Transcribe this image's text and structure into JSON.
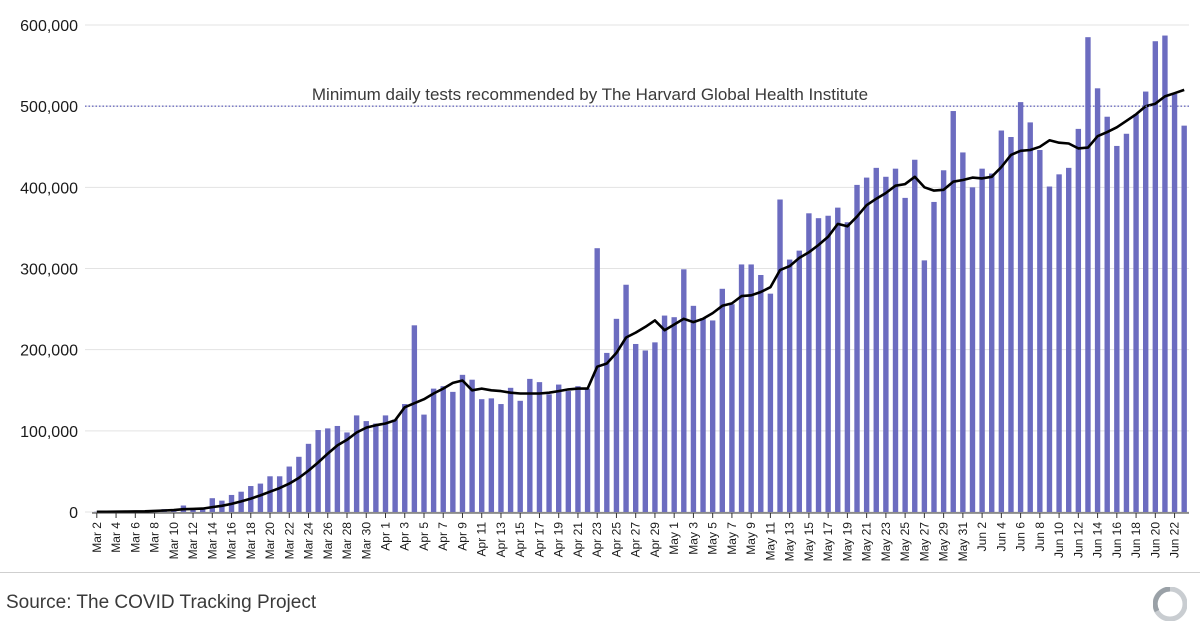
{
  "chart_data": {
    "type": "bar",
    "ylim": [
      0,
      600000
    ],
    "yticks": [
      0,
      100000,
      200000,
      300000,
      400000,
      500000,
      600000
    ],
    "ytick_labels": [
      "0",
      "100,000",
      "200,000",
      "300,000",
      "400,000",
      "500,000",
      "600,000"
    ],
    "xlabels_shown": [
      "Mar 2",
      "Mar 4",
      "Mar 6",
      "Mar 8",
      "Mar 10",
      "Mar 12",
      "Mar 14",
      "Mar 16",
      "Mar 18",
      "Mar 20",
      "Mar 22",
      "Mar 24",
      "Mar 26",
      "Mar 28",
      "Mar 30",
      "Apr 1",
      "Apr 3",
      "Apr 5",
      "Apr 7",
      "Apr 9",
      "Apr 11",
      "Apr 13",
      "Apr 15",
      "Apr 17",
      "Apr 19",
      "Apr 21",
      "Apr 23",
      "Apr 25",
      "Apr 27",
      "Apr 29",
      "May 1",
      "May 3",
      "May 5",
      "May 7",
      "May 9",
      "May 11",
      "May 13",
      "May 15",
      "May 17",
      "May 19",
      "May 21",
      "May 23",
      "May 25",
      "May 27",
      "May 29",
      "May 31",
      "Jun 2",
      "Jun 4",
      "Jun 6",
      "Jun 8",
      "Jun 10",
      "Jun 12",
      "Jun 14",
      "Jun 16",
      "Jun 18",
      "Jun 20",
      "Jun 22"
    ],
    "series": [
      {
        "type": "bar",
        "color": "#6c6cc0",
        "values": [
          300,
          500,
          700,
          900,
          1200,
          1600,
          2500,
          3500,
          3000,
          8000,
          4000,
          5000,
          17000,
          14000,
          21000,
          25000,
          32000,
          35000,
          44000,
          44000,
          56000,
          68000,
          84000,
          101000,
          103000,
          106000,
          98000,
          119000,
          112000,
          109000,
          119000,
          114000,
          133000,
          230000,
          120000,
          152000,
          155000,
          148000,
          169000,
          163000,
          139000,
          140000,
          133000,
          153000,
          137000,
          164000,
          160000,
          145000,
          157000,
          149000,
          155000,
          152000,
          325000,
          196000,
          238000,
          280000,
          207000,
          199000,
          209000,
          242000,
          240000,
          299000,
          254000,
          239000,
          236000,
          275000,
          256000,
          305000,
          305000,
          292000,
          269000,
          385000,
          311000,
          322000,
          368000,
          362000,
          365000,
          375000,
          357000,
          403000,
          412000,
          424000,
          413000,
          423000,
          387000,
          434000,
          310000,
          382000,
          421000,
          494000,
          443000,
          400000,
          423000,
          417000,
          470000,
          462000,
          505000,
          480000,
          446000,
          401000,
          416000,
          424000,
          472000,
          585000,
          522000,
          487000,
          451000,
          466000,
          490000,
          518000,
          580000,
          587000,
          515000,
          476000
        ]
      },
      {
        "type": "line",
        "color": "#000000",
        "values": [
          200,
          300,
          400,
          500,
          700,
          900,
          1300,
          1800,
          2300,
          3400,
          3800,
          4200,
          6000,
          7600,
          10000,
          13000,
          16500,
          20500,
          25000,
          29500,
          35000,
          42000,
          51000,
          61000,
          72000,
          82000,
          89000,
          98000,
          104000,
          107000,
          109000,
          113000,
          129000,
          134000,
          139000,
          146000,
          152000,
          159000,
          162000,
          150000,
          152000,
          150000,
          149000,
          147000,
          146000,
          146000,
          146000,
          147000,
          149000,
          151000,
          152000,
          152000,
          179000,
          183000,
          196000,
          215000,
          221000,
          228000,
          236000,
          224000,
          231000,
          238000,
          234000,
          238000,
          245000,
          254000,
          257000,
          266000,
          267000,
          271000,
          277000,
          298000,
          303000,
          313000,
          320000,
          329000,
          339000,
          355000,
          352000,
          364000,
          378000,
          386000,
          393000,
          402000,
          404000,
          413000,
          400000,
          396000,
          397000,
          407000,
          409000,
          412000,
          411000,
          413000,
          425000,
          440000,
          445000,
          446000,
          450000,
          458000,
          455000,
          454000,
          448000,
          449000,
          463000,
          468000,
          474000,
          482000,
          490000,
          500000,
          503000,
          512000,
          516000,
          520000
        ]
      }
    ],
    "reference_line": {
      "value": 500000,
      "label": "Minimum daily tests recommended by The Harvard Global Health Institute",
      "color": "#6c6cc0",
      "style": "dotted"
    },
    "grid": true
  },
  "footer": {
    "source": "Source: The COVID Tracking Project"
  },
  "logo_icon": "covid-tracking-project-logo-icon"
}
